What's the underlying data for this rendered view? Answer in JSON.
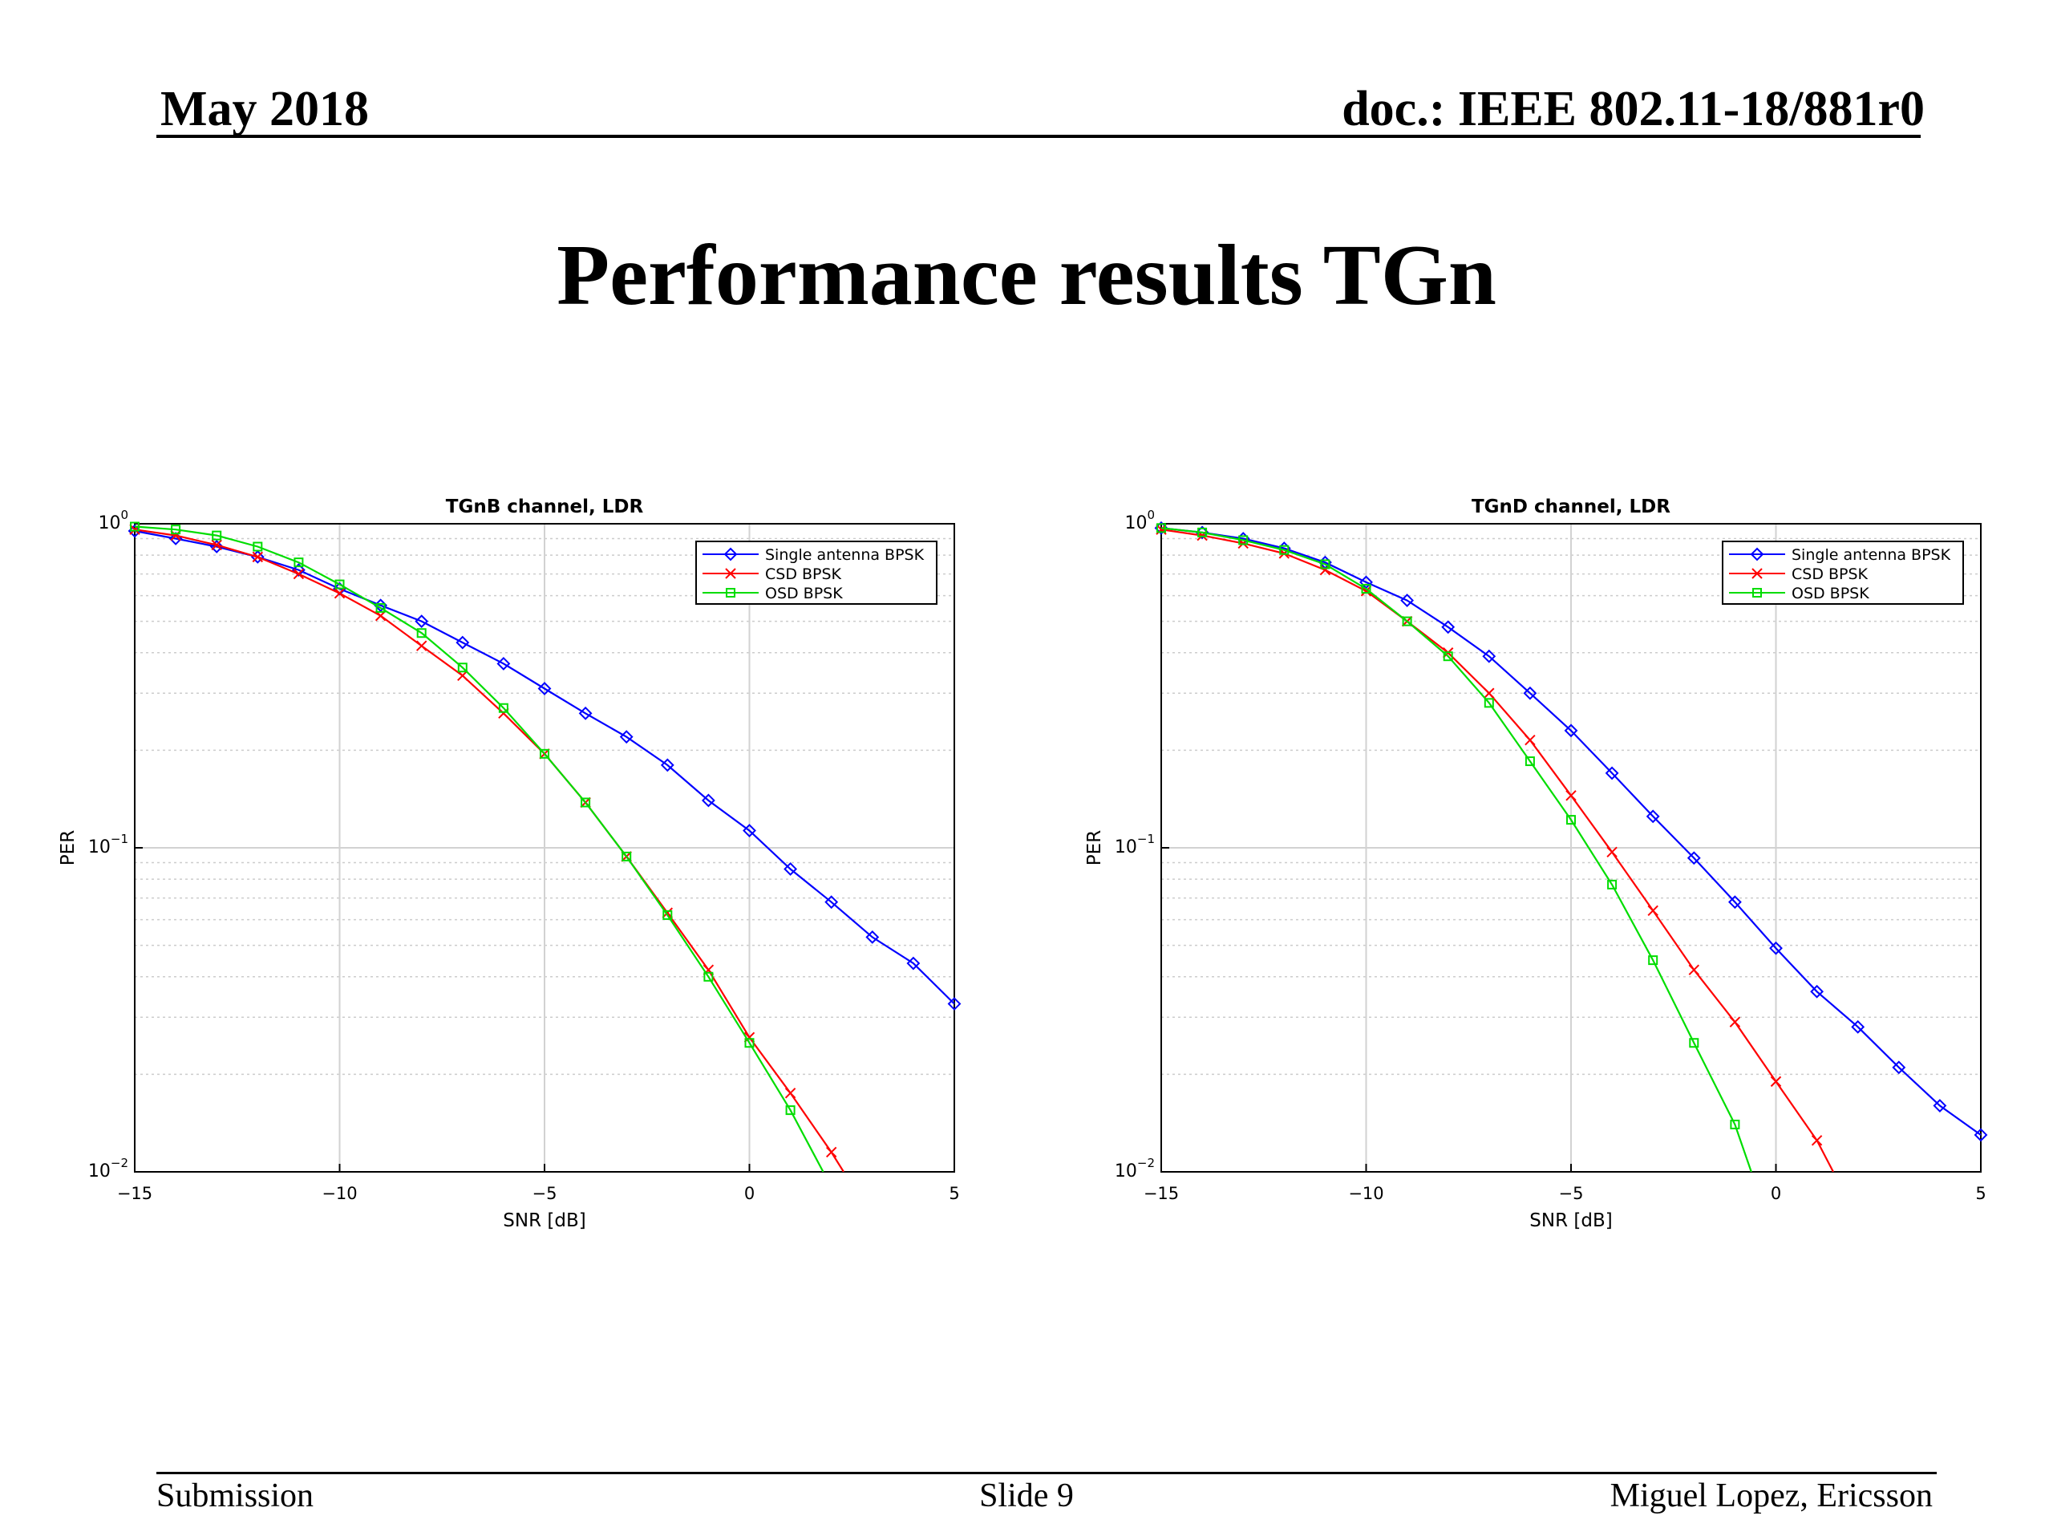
{
  "header": {
    "date": "May 2018",
    "doc": "doc.: IEEE 802.11-18/881r0"
  },
  "title": "Performance results TGn",
  "footer": {
    "left": "Submission",
    "center": "Slide 9",
    "right": "Miguel Lopez, Ericsson"
  },
  "chart_data": [
    {
      "type": "line",
      "title": "TGnB channel, LDR",
      "xlabel": "SNR [dB]",
      "ylabel": "PER",
      "xlim": [
        -15,
        5
      ],
      "ylim": [
        0.01,
        1
      ],
      "yscale": "log",
      "grid": true,
      "legend": "top-right",
      "xticks": [
        -15,
        -10,
        -5,
        0,
        5
      ],
      "series": [
        {
          "name": "Single antenna BPSK",
          "color": "#0000ff",
          "marker": "diamond",
          "x": [
            -15,
            -14,
            -13,
            -12,
            -11,
            -10,
            -9,
            -8,
            -7,
            -6,
            -5,
            -4,
            -3,
            -2,
            -1,
            0,
            1,
            2,
            3,
            4,
            5
          ],
          "y": [
            0.95,
            0.9,
            0.85,
            0.79,
            0.72,
            0.63,
            0.56,
            0.5,
            0.43,
            0.37,
            0.31,
            0.26,
            0.22,
            0.18,
            0.14,
            0.113,
            0.086,
            0.068,
            0.053,
            0.044,
            0.033
          ]
        },
        {
          "name": "CSD BPSK",
          "color": "#ff0000",
          "marker": "x",
          "x": [
            -15,
            -14,
            -13,
            -12,
            -11,
            -10,
            -9,
            -8,
            -7,
            -6,
            -5,
            -4,
            -3,
            -2,
            -1,
            0,
            1,
            2,
            2.3
          ],
          "y": [
            0.96,
            0.92,
            0.86,
            0.79,
            0.7,
            0.61,
            0.52,
            0.42,
            0.34,
            0.26,
            0.195,
            0.138,
            0.094,
            0.063,
            0.042,
            0.026,
            0.0175,
            0.0115,
            0.01
          ]
        },
        {
          "name": "OSD BPSK",
          "color": "#00dd00",
          "marker": "square",
          "x": [
            -15,
            -14,
            -13,
            -12,
            -11,
            -10,
            -9,
            -8,
            -7,
            -6,
            -5,
            -4,
            -3,
            -2,
            -1,
            0,
            1,
            1.8
          ],
          "y": [
            0.98,
            0.96,
            0.92,
            0.85,
            0.76,
            0.65,
            0.55,
            0.46,
            0.36,
            0.27,
            0.195,
            0.138,
            0.094,
            0.062,
            0.04,
            0.025,
            0.0155,
            0.01
          ]
        }
      ]
    },
    {
      "type": "line",
      "title": "TGnD channel, LDR",
      "xlabel": "SNR [dB]",
      "ylabel": "PER",
      "xlim": [
        -15,
        5
      ],
      "ylim": [
        0.01,
        1
      ],
      "yscale": "log",
      "grid": true,
      "legend": "top-right",
      "xticks": [
        -15,
        -10,
        -5,
        0,
        5
      ],
      "series": [
        {
          "name": "Single antenna BPSK",
          "color": "#0000ff",
          "marker": "diamond",
          "x": [
            -15,
            -14,
            -13,
            -12,
            -11,
            -10,
            -9,
            -8,
            -7,
            -6,
            -5,
            -4,
            -3,
            -2,
            -1,
            0,
            1,
            2,
            3,
            4,
            5
          ],
          "y": [
            0.97,
            0.94,
            0.9,
            0.84,
            0.76,
            0.66,
            0.58,
            0.48,
            0.39,
            0.3,
            0.23,
            0.17,
            0.125,
            0.093,
            0.068,
            0.049,
            0.036,
            0.028,
            0.021,
            0.016,
            0.013
          ]
        },
        {
          "name": "CSD BPSK",
          "color": "#ff0000",
          "marker": "x",
          "x": [
            -15,
            -14,
            -13,
            -12,
            -11,
            -10,
            -9,
            -8,
            -7,
            -6,
            -5,
            -4,
            -3,
            -2,
            -1,
            0,
            1,
            1.4
          ],
          "y": [
            0.96,
            0.92,
            0.87,
            0.81,
            0.72,
            0.62,
            0.5,
            0.4,
            0.3,
            0.215,
            0.145,
            0.097,
            0.064,
            0.042,
            0.029,
            0.019,
            0.0125,
            0.01
          ]
        },
        {
          "name": "OSD BPSK",
          "color": "#00dd00",
          "marker": "square",
          "x": [
            -15,
            -14,
            -13,
            -12,
            -11,
            -10,
            -9,
            -8,
            -7,
            -6,
            -5,
            -4,
            -3,
            -2,
            -1,
            -0.6
          ],
          "y": [
            0.97,
            0.94,
            0.89,
            0.83,
            0.75,
            0.63,
            0.5,
            0.39,
            0.28,
            0.185,
            0.122,
            0.077,
            0.045,
            0.025,
            0.014,
            0.01
          ]
        }
      ]
    }
  ]
}
